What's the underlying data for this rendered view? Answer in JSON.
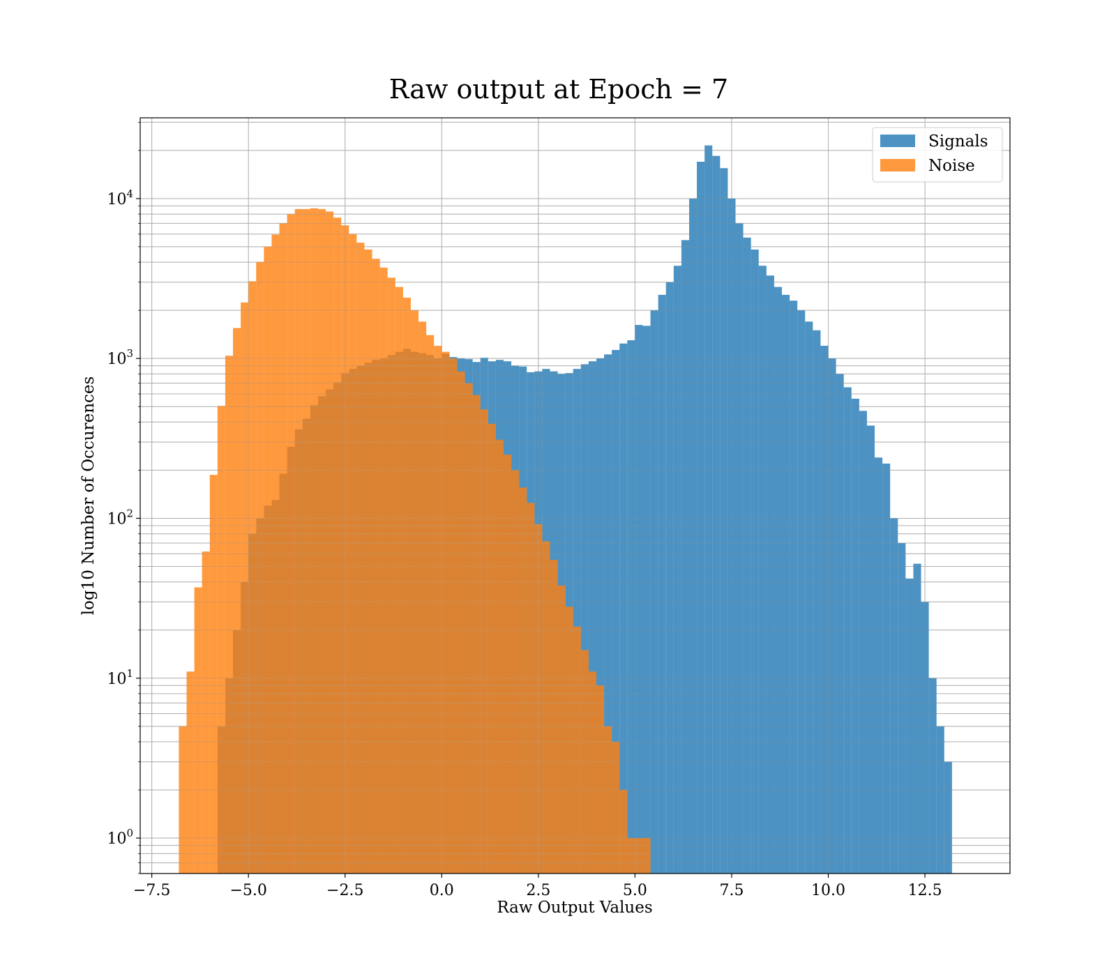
{
  "chart_data": {
    "type": "bar",
    "title": "Raw output at Epoch = 7",
    "xlabel": "Raw Output Values",
    "ylabel": "log10 Number of Occurences",
    "xlim": [
      -7.8,
      14.7
    ],
    "ylim": [
      0.6,
      32000
    ],
    "yscale": "log",
    "grid": true,
    "legend_position": "upper right",
    "xticks": [
      {
        "value": -7.5,
        "label": "−7.5"
      },
      {
        "value": -5.0,
        "label": "−5.0"
      },
      {
        "value": -2.5,
        "label": "−2.5"
      },
      {
        "value": 0.0,
        "label": "0.0"
      },
      {
        "value": 2.5,
        "label": "2.5"
      },
      {
        "value": 5.0,
        "label": "5.0"
      },
      {
        "value": 7.5,
        "label": "7.5"
      },
      {
        "value": 10.0,
        "label": "10.0"
      },
      {
        "value": 12.5,
        "label": "12.5"
      }
    ],
    "yticks": [
      {
        "value": 1,
        "base": "10",
        "exp": "0"
      },
      {
        "value": 10,
        "base": "10",
        "exp": "1"
      },
      {
        "value": 100,
        "base": "10",
        "exp": "2"
      },
      {
        "value": 1000,
        "base": "10",
        "exp": "3"
      },
      {
        "value": 10000,
        "base": "10",
        "exp": "4"
      }
    ],
    "series": [
      {
        "name": "Signals",
        "color": "#1f77b4",
        "opacity": 0.8,
        "bin_start": -5.8,
        "bin_width": 0.2,
        "values": [
          5,
          10,
          20,
          40,
          80,
          100,
          120,
          130,
          190,
          280,
          360,
          420,
          510,
          580,
          640,
          710,
          810,
          860,
          900,
          940,
          980,
          1000,
          1050,
          1100,
          1150,
          1100,
          1080,
          1050,
          1000,
          1070,
          1020,
          1000,
          990,
          950,
          1010,
          960,
          980,
          960,
          900,
          890,
          820,
          830,
          860,
          830,
          800,
          810,
          860,
          920,
          960,
          1000,
          1060,
          1130,
          1240,
          1300,
          1620,
          1600,
          2000,
          2500,
          3000,
          3800,
          5500,
          10000,
          17000,
          21500,
          18500,
          15500,
          10000,
          7000,
          5700,
          4800,
          3800,
          3300,
          2800,
          2500,
          2300,
          2000,
          1700,
          1500,
          1200,
          1000,
          800,
          660,
          560,
          470,
          380,
          240,
          220,
          100,
          70,
          42,
          52,
          30,
          10,
          5,
          3
        ]
      },
      {
        "name": "Noise",
        "color": "#ff7f0e",
        "opacity": 0.8,
        "bin_start": -6.8,
        "bin_width": 0.2,
        "values": [
          5,
          11,
          37,
          62,
          187,
          505,
          1040,
          1550,
          2240,
          3040,
          4020,
          5000,
          5950,
          7000,
          8000,
          8600,
          8600,
          8700,
          8600,
          8300,
          7600,
          6800,
          6000,
          5300,
          4800,
          4200,
          3700,
          3200,
          2800,
          2400,
          2000,
          1700,
          1400,
          1200,
          1100,
          1000,
          830,
          700,
          590,
          480,
          390,
          310,
          250,
          200,
          156,
          125,
          92,
          72,
          55,
          38,
          28,
          21,
          15,
          11,
          9,
          5,
          4,
          2,
          1,
          1,
          1
        ]
      }
    ]
  }
}
